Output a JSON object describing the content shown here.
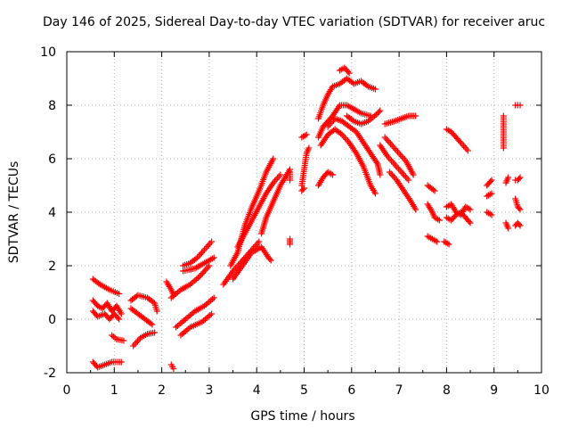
{
  "chart_data": {
    "type": "scatter",
    "title": "Day 146 of 2025, Sidereal Day-to-day VTEC variation (SDTVAR) for receiver aruc",
    "xlabel": "GPS time / hours",
    "ylabel": "SDTVAR / TECUs",
    "xlim": [
      0,
      10
    ],
    "ylim": [
      -2,
      10
    ],
    "xticks": [
      "0",
      "1",
      "2",
      "3",
      "4",
      "5",
      "6",
      "7",
      "8",
      "9",
      "10"
    ],
    "yticks": [
      "-2",
      "0",
      "2",
      "4",
      "6",
      "8",
      "10"
    ],
    "grid": true,
    "marker": "+",
    "color": "#ff0000",
    "segments": [
      [
        [
          0.55,
          1.5
        ],
        [
          0.7,
          1.3
        ],
        [
          0.9,
          1.1
        ],
        [
          1.1,
          0.95
        ]
      ],
      [
        [
          0.55,
          0.7
        ],
        [
          0.65,
          0.5
        ],
        [
          0.75,
          0.4
        ],
        [
          0.85,
          0.6
        ],
        [
          0.95,
          0.3
        ],
        [
          1.05,
          0.5
        ],
        [
          1.15,
          0.2
        ]
      ],
      [
        [
          0.55,
          0.3
        ],
        [
          0.65,
          0.1
        ],
        [
          0.8,
          0.2
        ],
        [
          0.9,
          0.0
        ],
        [
          1.0,
          0.2
        ],
        [
          1.1,
          0.0
        ]
      ],
      [
        [
          0.55,
          -1.6
        ],
        [
          0.65,
          -1.8
        ],
        [
          0.8,
          -1.7
        ],
        [
          0.95,
          -1.6
        ],
        [
          1.15,
          -1.6
        ]
      ],
      [
        [
          0.95,
          -0.6
        ],
        [
          1.05,
          -0.75
        ],
        [
          1.2,
          -0.8
        ]
      ],
      [
        [
          1.35,
          0.7
        ],
        [
          1.5,
          0.9
        ],
        [
          1.7,
          0.8
        ],
        [
          1.85,
          0.6
        ],
        [
          1.9,
          0.3
        ]
      ],
      [
        [
          1.35,
          0.4
        ],
        [
          1.5,
          0.2
        ],
        [
          1.65,
          0.0
        ],
        [
          1.8,
          -0.2
        ]
      ],
      [
        [
          1.4,
          -1.0
        ],
        [
          1.55,
          -0.7
        ],
        [
          1.7,
          -0.55
        ],
        [
          1.85,
          -0.5
        ]
      ],
      [
        [
          2.1,
          1.4
        ],
        [
          2.2,
          1.1
        ],
        [
          2.25,
          0.9
        ]
      ],
      [
        [
          2.2,
          -1.7
        ],
        [
          2.25,
          -1.85
        ]
      ],
      [
        [
          2.3,
          -0.3
        ],
        [
          2.5,
          0.0
        ],
        [
          2.7,
          0.3
        ],
        [
          2.9,
          0.5
        ],
        [
          3.1,
          0.8
        ]
      ],
      [
        [
          2.4,
          -0.6
        ],
        [
          2.6,
          -0.3
        ],
        [
          2.85,
          -0.1
        ],
        [
          3.05,
          0.2
        ]
      ],
      [
        [
          2.2,
          0.8
        ],
        [
          2.4,
          1.1
        ],
        [
          2.6,
          1.3
        ],
        [
          2.8,
          1.6
        ],
        [
          3.0,
          2.0
        ]
      ],
      [
        [
          2.45,
          2.0
        ],
        [
          2.6,
          2.1
        ],
        [
          2.75,
          2.3
        ],
        [
          2.9,
          2.6
        ],
        [
          3.05,
          2.9
        ]
      ],
      [
        [
          2.45,
          1.8
        ],
        [
          2.7,
          1.9
        ],
        [
          2.9,
          2.1
        ],
        [
          3.1,
          2.3
        ]
      ],
      [
        [
          3.3,
          1.3
        ],
        [
          3.5,
          1.8
        ],
        [
          3.7,
          2.2
        ],
        [
          3.9,
          2.6
        ],
        [
          4.05,
          2.9
        ]
      ],
      [
        [
          3.45,
          2.0
        ],
        [
          3.6,
          2.5
        ],
        [
          3.75,
          3.5
        ],
        [
          3.9,
          4.2
        ],
        [
          4.05,
          4.8
        ],
        [
          4.2,
          5.5
        ],
        [
          4.35,
          6.0
        ]
      ],
      [
        [
          3.6,
          2.7
        ],
        [
          3.75,
          3.2
        ],
        [
          3.9,
          3.7
        ],
        [
          4.05,
          4.2
        ],
        [
          4.2,
          4.7
        ],
        [
          4.35,
          5.1
        ],
        [
          4.5,
          5.4
        ]
      ],
      [
        [
          3.5,
          1.5
        ],
        [
          3.7,
          2.0
        ],
        [
          3.9,
          2.5
        ],
        [
          4.1,
          2.7
        ],
        [
          4.25,
          2.3
        ],
        [
          4.3,
          2.2
        ]
      ],
      [
        [
          4.1,
          3.2
        ],
        [
          4.2,
          3.8
        ],
        [
          4.35,
          4.4
        ],
        [
          4.5,
          5.0
        ],
        [
          4.7,
          5.6
        ]
      ],
      [
        [
          4.7,
          5.5
        ],
        [
          4.7,
          5.2
        ]
      ],
      [
        [
          4.7,
          3.0
        ],
        [
          4.7,
          2.8
        ]
      ],
      [
        [
          4.95,
          5.0
        ],
        [
          5.0,
          5.6
        ],
        [
          5.05,
          6.2
        ],
        [
          5.1,
          6.4
        ]
      ],
      [
        [
          4.95,
          6.8
        ],
        [
          5.05,
          6.9
        ]
      ],
      [
        [
          4.95,
          4.8
        ],
        [
          5.0,
          4.9
        ]
      ],
      [
        [
          5.3,
          5.0
        ],
        [
          5.4,
          5.3
        ],
        [
          5.5,
          5.5
        ],
        [
          5.6,
          5.4
        ]
      ],
      [
        [
          5.3,
          6.8
        ],
        [
          5.4,
          7.2
        ],
        [
          5.5,
          7.4
        ],
        [
          5.6,
          7.6
        ],
        [
          5.75,
          8.0
        ],
        [
          5.9,
          8.0
        ],
        [
          6.0,
          7.9
        ],
        [
          6.2,
          7.7
        ],
        [
          6.4,
          7.6
        ]
      ],
      [
        [
          5.3,
          7.5
        ],
        [
          5.4,
          8.0
        ],
        [
          5.5,
          8.4
        ],
        [
          5.6,
          8.7
        ],
        [
          5.75,
          8.8
        ],
        [
          5.9,
          9.0
        ],
        [
          6.05,
          8.8
        ],
        [
          6.2,
          8.9
        ],
        [
          6.35,
          8.7
        ],
        [
          6.5,
          8.6
        ]
      ],
      [
        [
          5.75,
          9.3
        ],
        [
          5.85,
          9.4
        ],
        [
          5.95,
          9.2
        ]
      ],
      [
        [
          5.35,
          6.5
        ],
        [
          5.5,
          6.9
        ],
        [
          5.65,
          7.1
        ],
        [
          5.8,
          6.9
        ],
        [
          5.95,
          6.6
        ],
        [
          6.1,
          6.2
        ],
        [
          6.25,
          5.7
        ],
        [
          6.4,
          5.0
        ],
        [
          6.5,
          4.7
        ]
      ],
      [
        [
          5.5,
          7.2
        ],
        [
          5.65,
          7.5
        ],
        [
          5.8,
          7.4
        ],
        [
          5.95,
          7.2
        ],
        [
          6.1,
          7.0
        ],
        [
          6.25,
          6.6
        ],
        [
          6.4,
          6.2
        ],
        [
          6.55,
          5.8
        ],
        [
          6.6,
          5.4
        ]
      ],
      [
        [
          5.9,
          7.6
        ],
        [
          6.05,
          7.4
        ],
        [
          6.2,
          7.3
        ],
        [
          6.35,
          7.4
        ],
        [
          6.55,
          7.7
        ],
        [
          6.6,
          7.8
        ]
      ],
      [
        [
          6.6,
          6.5
        ],
        [
          6.75,
          6.1
        ],
        [
          6.9,
          5.8
        ],
        [
          7.05,
          5.5
        ],
        [
          7.2,
          5.2
        ]
      ],
      [
        [
          6.7,
          6.8
        ],
        [
          6.85,
          6.5
        ],
        [
          7.0,
          6.2
        ],
        [
          7.15,
          5.9
        ],
        [
          7.3,
          5.4
        ]
      ],
      [
        [
          6.8,
          5.5
        ],
        [
          6.95,
          5.2
        ],
        [
          7.1,
          4.8
        ],
        [
          7.25,
          4.4
        ],
        [
          7.35,
          4.1
        ]
      ],
      [
        [
          6.7,
          7.3
        ],
        [
          6.9,
          7.4
        ],
        [
          7.05,
          7.5
        ],
        [
          7.2,
          7.6
        ],
        [
          7.35,
          7.6
        ]
      ],
      [
        [
          7.6,
          5.0
        ],
        [
          7.75,
          4.8
        ]
      ],
      [
        [
          7.6,
          4.3
        ],
        [
          7.7,
          4.0
        ],
        [
          7.75,
          3.8
        ],
        [
          7.85,
          3.7
        ]
      ],
      [
        [
          7.6,
          3.1
        ],
        [
          7.7,
          3.0
        ],
        [
          7.8,
          2.9
        ]
      ],
      [
        [
          7.95,
          2.9
        ],
        [
          8.05,
          2.8
        ]
      ],
      [
        [
          8.0,
          4.2
        ],
        [
          8.1,
          4.3
        ],
        [
          8.2,
          4.0
        ],
        [
          8.3,
          3.9
        ],
        [
          8.4,
          4.2
        ],
        [
          8.5,
          4.1
        ]
      ],
      [
        [
          8.0,
          3.8
        ],
        [
          8.1,
          3.7
        ],
        [
          8.2,
          3.9
        ],
        [
          8.3,
          4.0
        ],
        [
          8.4,
          3.8
        ],
        [
          8.5,
          3.6
        ]
      ],
      [
        [
          8.0,
          7.1
        ],
        [
          8.1,
          7.0
        ],
        [
          8.2,
          6.8
        ],
        [
          8.3,
          6.6
        ],
        [
          8.45,
          6.3
        ]
      ],
      [
        [
          8.85,
          5.0
        ],
        [
          8.95,
          5.2
        ]
      ],
      [
        [
          8.85,
          4.6
        ],
        [
          8.95,
          4.7
        ]
      ],
      [
        [
          8.85,
          4.0
        ],
        [
          8.95,
          3.9
        ]
      ],
      [
        [
          9.2,
          7.6
        ],
        [
          9.2,
          6.4
        ]
      ],
      [
        [
          9.25,
          5.1
        ],
        [
          9.3,
          5.3
        ]
      ],
      [
        [
          9.25,
          3.6
        ],
        [
          9.3,
          3.4
        ]
      ],
      [
        [
          9.45,
          8.0
        ],
        [
          9.55,
          8.0
        ]
      ],
      [
        [
          9.45,
          5.2
        ],
        [
          9.5,
          5.2
        ],
        [
          9.55,
          5.3
        ]
      ],
      [
        [
          9.45,
          4.5
        ],
        [
          9.5,
          4.2
        ],
        [
          9.55,
          4.1
        ]
      ],
      [
        [
          9.45,
          3.5
        ],
        [
          9.5,
          3.6
        ],
        [
          9.55,
          3.5
        ]
      ]
    ]
  }
}
